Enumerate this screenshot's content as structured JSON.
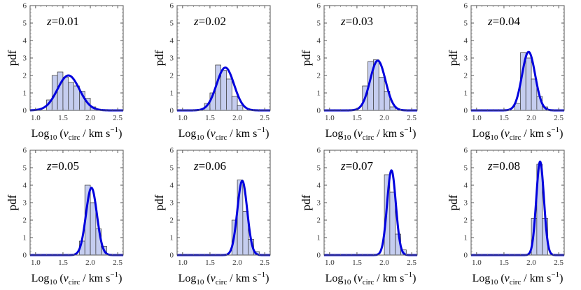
{
  "figure": {
    "panels_per_row": 4,
    "line_color": "#0000dd",
    "bar_fill": "#c5cdef",
    "bar_stroke": "#333333"
  },
  "chart_data": [
    {
      "type": "bar",
      "label": "z=0.01",
      "z_prefix": "z",
      "z_value": "=0.01",
      "xlim": [
        0.9,
        2.6
      ],
      "ylim": [
        0,
        6
      ],
      "xticks": [
        "1.0",
        "1.5",
        "2.0",
        "2.5"
      ],
      "yticks": [
        "0",
        "1",
        "2",
        "3",
        "4",
        "5",
        "6"
      ],
      "ylabel": "pdf",
      "xlabel_main": "Log",
      "xlabel_sub": "10",
      "xlabel_open": " (",
      "xlabel_v": "v",
      "xlabel_vsub": "circ",
      "xlabel_unit": " / km s",
      "xlabel_exp": "−1",
      "xlabel_close": ")",
      "bin_width": 0.1,
      "bins": [
        {
          "x": 1.25,
          "value": 0.6
        },
        {
          "x": 1.35,
          "value": 2.0
        },
        {
          "x": 1.45,
          "value": 2.2
        },
        {
          "x": 1.55,
          "value": 1.9
        },
        {
          "x": 1.65,
          "value": 1.6
        },
        {
          "x": 1.75,
          "value": 1.4
        },
        {
          "x": 1.85,
          "value": 1.1
        },
        {
          "x": 1.95,
          "value": 0.7
        },
        {
          "x": 2.05,
          "value": 0.2
        }
      ],
      "fit": {
        "mu": 1.6,
        "sigma": 0.2,
        "peak": 2.0
      }
    },
    {
      "type": "bar",
      "label": "z=0.02",
      "z_prefix": "z",
      "z_value": "=0.02",
      "xlim": [
        0.9,
        2.6
      ],
      "ylim": [
        0,
        6
      ],
      "xticks": [
        "1.0",
        "1.5",
        "2.0",
        "2.5"
      ],
      "yticks": [
        "0",
        "1",
        "2",
        "3",
        "4",
        "5",
        "6"
      ],
      "ylabel": "pdf",
      "xlabel_main": "Log",
      "xlabel_sub": "10",
      "xlabel_open": " (",
      "xlabel_v": "v",
      "xlabel_vsub": "circ",
      "xlabel_unit": " / km s",
      "xlabel_exp": "−1",
      "xlabel_close": ")",
      "bin_width": 0.1,
      "bins": [
        {
          "x": 1.45,
          "value": 0.4
        },
        {
          "x": 1.55,
          "value": 1.0
        },
        {
          "x": 1.65,
          "value": 2.6
        },
        {
          "x": 1.75,
          "value": 2.3
        },
        {
          "x": 1.85,
          "value": 1.8
        },
        {
          "x": 1.95,
          "value": 0.8
        },
        {
          "x": 2.05,
          "value": 0.3
        }
      ],
      "fit": {
        "mu": 1.78,
        "sigma": 0.16,
        "peak": 2.45
      }
    },
    {
      "type": "bar",
      "label": "z=0.03",
      "z_prefix": "z",
      "z_value": "=0.03",
      "xlim": [
        0.9,
        2.6
      ],
      "ylim": [
        0,
        6
      ],
      "xticks": [
        "1.0",
        "1.5",
        "2.0",
        "2.5"
      ],
      "yticks": [
        "0",
        "1",
        "2",
        "3",
        "4",
        "5",
        "6"
      ],
      "ylabel": "pdf",
      "xlabel_main": "Log",
      "xlabel_sub": "10",
      "xlabel_open": " (",
      "xlabel_v": "v",
      "xlabel_vsub": "circ",
      "xlabel_unit": " / km s",
      "xlabel_exp": "−1",
      "xlabel_close": ")",
      "bin_width": 0.1,
      "bins": [
        {
          "x": 1.65,
          "value": 1.4
        },
        {
          "x": 1.75,
          "value": 2.8
        },
        {
          "x": 1.85,
          "value": 2.9
        },
        {
          "x": 1.95,
          "value": 1.9
        },
        {
          "x": 2.05,
          "value": 1.1
        },
        {
          "x": 2.15,
          "value": 0.2
        }
      ],
      "fit": {
        "mu": 1.88,
        "sigma": 0.14,
        "peak": 2.85
      }
    },
    {
      "type": "bar",
      "label": "z=0.04",
      "z_prefix": "z",
      "z_value": "=0.04",
      "xlim": [
        0.9,
        2.6
      ],
      "ylim": [
        0,
        6
      ],
      "xticks": [
        "1.0",
        "1.5",
        "2.0",
        "2.5"
      ],
      "yticks": [
        "0",
        "1",
        "2",
        "3",
        "4",
        "5",
        "6"
      ],
      "ylabel": "pdf",
      "xlabel_main": "Log",
      "xlabel_sub": "10",
      "xlabel_open": " (",
      "xlabel_v": "v",
      "xlabel_vsub": "circ",
      "xlabel_unit": " / km s",
      "xlabel_exp": "−1",
      "xlabel_close": ")",
      "bin_width": 0.1,
      "bins": [
        {
          "x": 1.75,
          "value": 0.4
        },
        {
          "x": 1.85,
          "value": 3.3
        },
        {
          "x": 1.95,
          "value": 3.0
        },
        {
          "x": 2.05,
          "value": 1.8
        },
        {
          "x": 2.15,
          "value": 0.8
        },
        {
          "x": 2.25,
          "value": 0.2
        }
      ],
      "fit": {
        "mu": 1.95,
        "sigma": 0.12,
        "peak": 3.35
      }
    },
    {
      "type": "bar",
      "label": "z=0.05",
      "z_prefix": "z",
      "z_value": "=0.05",
      "xlim": [
        0.9,
        2.6
      ],
      "ylim": [
        0,
        6
      ],
      "xticks": [
        "1.0",
        "1.5",
        "2.0",
        "2.5"
      ],
      "yticks": [
        "0",
        "1",
        "2",
        "3",
        "4",
        "5",
        "6"
      ],
      "ylabel": "pdf",
      "xlabel_main": "Log",
      "xlabel_sub": "10",
      "xlabel_open": " (",
      "xlabel_v": "v",
      "xlabel_vsub": "circ",
      "xlabel_unit": " / km s",
      "xlabel_exp": "−1",
      "xlabel_close": ")",
      "bin_width": 0.1,
      "bins": [
        {
          "x": 1.85,
          "value": 0.8
        },
        {
          "x": 1.95,
          "value": 4.0
        },
        {
          "x": 2.05,
          "value": 3.0
        },
        {
          "x": 2.15,
          "value": 1.5
        },
        {
          "x": 2.25,
          "value": 0.5
        }
      ],
      "fit": {
        "mu": 2.02,
        "sigma": 0.1,
        "peak": 3.85
      }
    },
    {
      "type": "bar",
      "label": "z=0.06",
      "z_prefix": "z",
      "z_value": "=0.06",
      "xlim": [
        0.9,
        2.6
      ],
      "ylim": [
        0,
        6
      ],
      "xticks": [
        "1.0",
        "1.5",
        "2.0",
        "2.5"
      ],
      "yticks": [
        "0",
        "1",
        "2",
        "3",
        "4",
        "5",
        "6"
      ],
      "ylabel": "pdf",
      "xlabel_main": "Log",
      "xlabel_sub": "10",
      "xlabel_open": " (",
      "xlabel_v": "v",
      "xlabel_vsub": "circ",
      "xlabel_unit": " / km s",
      "xlabel_exp": "−1",
      "xlabel_close": ")",
      "bin_width": 0.1,
      "bins": [
        {
          "x": 1.95,
          "value": 2.0
        },
        {
          "x": 2.05,
          "value": 4.3
        },
        {
          "x": 2.15,
          "value": 2.5
        },
        {
          "x": 2.25,
          "value": 0.9
        },
        {
          "x": 2.35,
          "value": 0.2
        }
      ],
      "fit": {
        "mu": 2.09,
        "sigma": 0.09,
        "peak": 4.25
      }
    },
    {
      "type": "bar",
      "label": "z=0.07",
      "z_prefix": "z",
      "z_value": "=0.07",
      "xlim": [
        0.9,
        2.6
      ],
      "ylim": [
        0,
        6
      ],
      "xticks": [
        "1.0",
        "1.5",
        "2.0",
        "2.5"
      ],
      "yticks": [
        "0",
        "1",
        "2",
        "3",
        "4",
        "5",
        "6"
      ],
      "ylabel": "pdf",
      "xlabel_main": "Log",
      "xlabel_sub": "10",
      "xlabel_open": " (",
      "xlabel_v": "v",
      "xlabel_vsub": "circ",
      "xlabel_unit": " / km s",
      "xlabel_exp": "−1",
      "xlabel_close": ")",
      "bin_width": 0.1,
      "bins": [
        {
          "x": 2.05,
          "value": 4.6
        },
        {
          "x": 2.15,
          "value": 3.6
        },
        {
          "x": 2.25,
          "value": 1.2
        },
        {
          "x": 2.35,
          "value": 0.3
        }
      ],
      "fit": {
        "mu": 2.13,
        "sigma": 0.08,
        "peak": 4.85
      }
    },
    {
      "type": "bar",
      "label": "z=0.08",
      "z_prefix": "z",
      "z_value": "=0.08",
      "xlim": [
        0.9,
        2.6
      ],
      "ylim": [
        0,
        6
      ],
      "xticks": [
        "1.0",
        "1.5",
        "2.0",
        "2.5"
      ],
      "yticks": [
        "0",
        "1",
        "2",
        "3",
        "4",
        "5",
        "6"
      ],
      "ylabel": "pdf",
      "xlabel_main": "Log",
      "xlabel_sub": "10",
      "xlabel_open": " (",
      "xlabel_v": "v",
      "xlabel_vsub": "circ",
      "xlabel_unit": " / km s",
      "xlabel_exp": "−1",
      "xlabel_close": ")",
      "bin_width": 0.1,
      "bins": [
        {
          "x": 2.05,
          "value": 2.1
        },
        {
          "x": 2.15,
          "value": 5.2
        },
        {
          "x": 2.25,
          "value": 2.1
        }
      ],
      "fit": {
        "mu": 2.16,
        "sigma": 0.07,
        "peak": 5.35
      }
    }
  ]
}
